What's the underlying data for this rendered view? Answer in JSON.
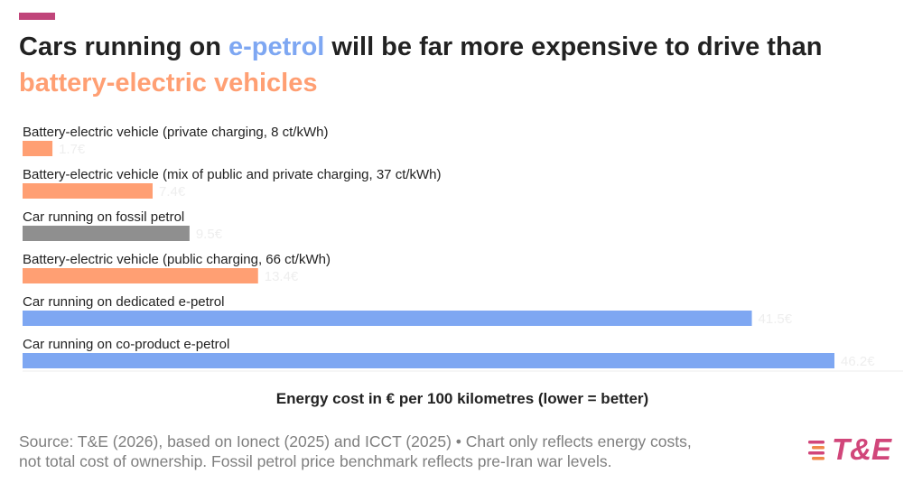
{
  "header": {
    "title_part1": "Cars running on ",
    "title_highlight1": "e-petrol",
    "title_part2": " will be far more expensive to drive than ",
    "title_highlight2": "battery-electric vehicles"
  },
  "colors": {
    "accent_bar": "#c0457a",
    "blue": "#7ea7f2",
    "orange": "#ff9f73",
    "gray": "#8f8f8f",
    "value_label": "#eeeeee",
    "logo_pink": "#d1467a",
    "logo_orange": "#f0894a"
  },
  "chart_data": {
    "type": "bar",
    "orientation": "horizontal",
    "categories": [
      "Battery-electric vehicle (private charging, 8 ct/kWh)",
      "Battery-electric vehicle (mix of public and private charging, 37 ct/kWh)",
      "Car running on fossil petrol",
      "Battery-electric vehicle (public charging, 66 ct/kWh)",
      "Car running on dedicated e-petrol",
      "Car running on co-product e-petrol"
    ],
    "values": [
      1.7,
      7.4,
      9.5,
      13.4,
      41.5,
      46.2
    ],
    "value_labels": [
      "1.7€",
      "7.4€",
      "9.5€",
      "13.4€",
      "41.5€",
      "46.2€"
    ],
    "bar_colors": [
      "#ff9f73",
      "#ff9f73",
      "#8f8f8f",
      "#ff9f73",
      "#7ea7f2",
      "#7ea7f2"
    ],
    "xlabel": "Energy cost in € per 100 kilometres (lower = better)",
    "xlim": [
      0,
      46.2
    ],
    "grid": false,
    "legend": "none"
  },
  "source": {
    "line1": "Source: T&E (2026), based on Ionect (2025) and ICCT (2025) • Chart only reflects energy costs,",
    "line2": "not total cost of ownership. Fossil petrol price benchmark reflects pre-Iran war levels."
  },
  "logo": {
    "text": "T&E"
  }
}
